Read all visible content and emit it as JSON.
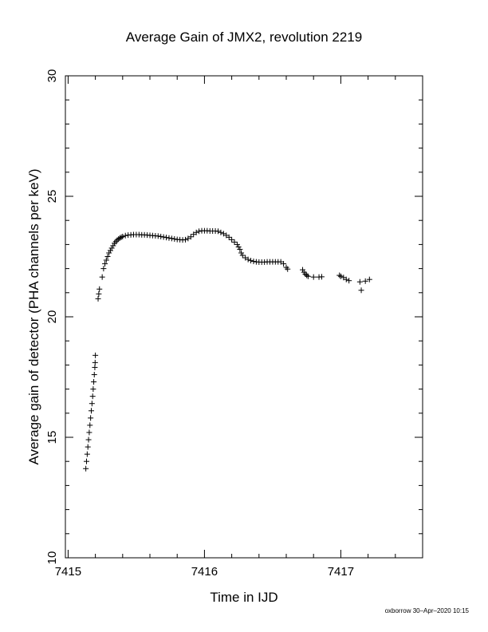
{
  "chart_data": {
    "type": "scatter",
    "title": "Average Gain of JMX2, revolution 2219",
    "xlabel": "Time in IJD",
    "ylabel": "Average gain of detector (PHA channels per keV)",
    "xlim": [
      7414.98,
      7417.6
    ],
    "ylim": [
      10,
      30
    ],
    "xticks": [
      7415,
      7416,
      7417
    ],
    "yticks": [
      10,
      15,
      20,
      25,
      30
    ],
    "grid": false,
    "marker": "+",
    "series": [
      {
        "points": [
          [
            7415.13,
            13.7
          ],
          [
            7415.135,
            14.0
          ],
          [
            7415.14,
            14.3
          ],
          [
            7415.145,
            14.6
          ],
          [
            7415.15,
            14.9
          ],
          [
            7415.155,
            15.2
          ],
          [
            7415.16,
            15.5
          ],
          [
            7415.165,
            15.8
          ],
          [
            7415.17,
            16.1
          ],
          [
            7415.175,
            16.4
          ],
          [
            7415.18,
            16.7
          ],
          [
            7415.184,
            17.0
          ],
          [
            7415.188,
            17.3
          ],
          [
            7415.192,
            17.6
          ],
          [
            7415.196,
            17.9
          ],
          [
            7415.198,
            18.1
          ],
          [
            7415.2,
            18.4
          ],
          [
            7415.22,
            20.75
          ],
          [
            7415.225,
            20.95
          ],
          [
            7415.23,
            21.15
          ],
          [
            7415.25,
            21.65
          ],
          [
            7415.26,
            22.0
          ],
          [
            7415.27,
            22.2
          ],
          [
            7415.28,
            22.35
          ],
          [
            7415.29,
            22.5
          ],
          [
            7415.3,
            22.65
          ],
          [
            7415.31,
            22.75
          ],
          [
            7415.32,
            22.85
          ],
          [
            7415.33,
            22.95
          ],
          [
            7415.34,
            23.05
          ],
          [
            7415.35,
            23.12
          ],
          [
            7415.36,
            23.18
          ],
          [
            7415.37,
            23.23
          ],
          [
            7415.38,
            23.27
          ],
          [
            7415.39,
            23.3
          ],
          [
            7415.4,
            23.33
          ],
          [
            7415.42,
            23.37
          ],
          [
            7415.44,
            23.39
          ],
          [
            7415.46,
            23.4
          ],
          [
            7415.48,
            23.41
          ],
          [
            7415.5,
            23.41
          ],
          [
            7415.52,
            23.41
          ],
          [
            7415.54,
            23.4
          ],
          [
            7415.56,
            23.4
          ],
          [
            7415.58,
            23.39
          ],
          [
            7415.6,
            23.38
          ],
          [
            7415.62,
            23.37
          ],
          [
            7415.64,
            23.36
          ],
          [
            7415.66,
            23.35
          ],
          [
            7415.68,
            23.33
          ],
          [
            7415.7,
            23.31
          ],
          [
            7415.72,
            23.29
          ],
          [
            7415.74,
            23.27
          ],
          [
            7415.76,
            23.25
          ],
          [
            7415.78,
            23.23
          ],
          [
            7415.8,
            23.21
          ],
          [
            7415.82,
            23.2
          ],
          [
            7415.84,
            23.19
          ],
          [
            7415.86,
            23.2
          ],
          [
            7415.88,
            23.25
          ],
          [
            7415.9,
            23.32
          ],
          [
            7415.92,
            23.42
          ],
          [
            7415.94,
            23.5
          ],
          [
            7415.96,
            23.55
          ],
          [
            7415.98,
            23.57
          ],
          [
            7416.0,
            23.57
          ],
          [
            7416.02,
            23.57
          ],
          [
            7416.04,
            23.56
          ],
          [
            7416.06,
            23.56
          ],
          [
            7416.08,
            23.56
          ],
          [
            7416.1,
            23.55
          ],
          [
            7416.12,
            23.5
          ],
          [
            7416.14,
            23.45
          ],
          [
            7416.16,
            23.38
          ],
          [
            7416.18,
            23.3
          ],
          [
            7416.2,
            23.2
          ],
          [
            7416.22,
            23.1
          ],
          [
            7416.24,
            23.0
          ],
          [
            7416.25,
            22.9
          ],
          [
            7416.26,
            22.8
          ],
          [
            7416.27,
            22.65
          ],
          [
            7416.28,
            22.55
          ],
          [
            7416.3,
            22.45
          ],
          [
            7416.32,
            22.38
          ],
          [
            7416.34,
            22.33
          ],
          [
            7416.36,
            22.3
          ],
          [
            7416.38,
            22.28
          ],
          [
            7416.4,
            22.27
          ],
          [
            7416.42,
            22.27
          ],
          [
            7416.44,
            22.27
          ],
          [
            7416.46,
            22.28
          ],
          [
            7416.48,
            22.28
          ],
          [
            7416.5,
            22.28
          ],
          [
            7416.52,
            22.28
          ],
          [
            7416.54,
            22.28
          ],
          [
            7416.56,
            22.28
          ],
          [
            7416.58,
            22.2
          ],
          [
            7416.6,
            22.05
          ],
          [
            7416.61,
            21.98
          ],
          [
            7416.72,
            21.95
          ],
          [
            7416.73,
            21.85
          ],
          [
            7416.74,
            21.77
          ],
          [
            7416.75,
            21.72
          ],
          [
            7416.76,
            21.68
          ],
          [
            7416.8,
            21.65
          ],
          [
            7416.84,
            21.65
          ],
          [
            7416.86,
            21.66
          ],
          [
            7416.99,
            21.72
          ],
          [
            7417.0,
            21.68
          ],
          [
            7417.02,
            21.63
          ],
          [
            7417.04,
            21.55
          ],
          [
            7417.06,
            21.5
          ],
          [
            7417.14,
            21.45
          ],
          [
            7417.15,
            21.1
          ],
          [
            7417.18,
            21.48
          ],
          [
            7417.21,
            21.55
          ]
        ]
      }
    ]
  },
  "footer": "oxborrow 30–Apr–2020 10:15"
}
